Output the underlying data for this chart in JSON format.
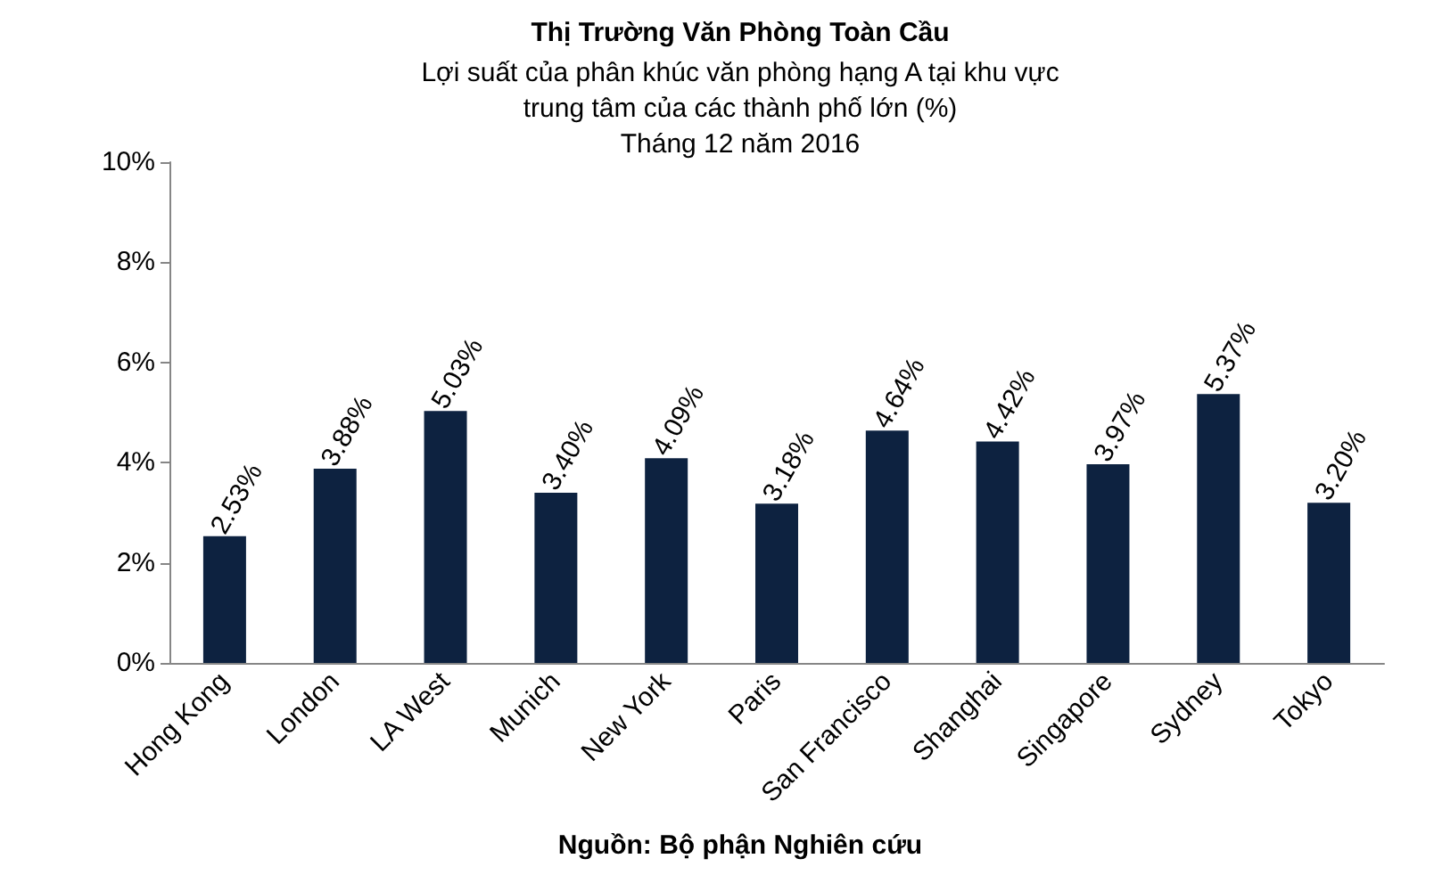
{
  "chart_data": {
    "type": "bar",
    "title": "Thị Trường Văn Phòng Toàn Cầu",
    "subtitle": "Lợi suất của phân khúc văn phòng hạng A tại khu vực\ntrung tâm của các thành phố lớn (%)\nTháng 12 năm 2016",
    "categories": [
      "Hong Kong",
      "London",
      "LA West",
      "Munich",
      "New York",
      "Paris",
      "San Francisco",
      "Shanghai",
      "Singapore",
      "Sydney",
      "Tokyo"
    ],
    "values": [
      2.53,
      3.88,
      5.03,
      3.4,
      4.09,
      3.18,
      4.64,
      4.42,
      3.97,
      5.37,
      3.2
    ],
    "value_labels": [
      "2.53%",
      "3.88%",
      "5.03%",
      "3.40%",
      "4.09%",
      "3.18%",
      "4.64%",
      "4.42%",
      "3.97%",
      "5.37%",
      "3.20%"
    ],
    "color": "#0d2240",
    "ylim": [
      0,
      10
    ],
    "yticks": [
      {
        "value": 0,
        "label": "0%"
      },
      {
        "value": 2,
        "label": "2%"
      },
      {
        "value": 4,
        "label": "4%"
      },
      {
        "value": 6,
        "label": "6%"
      },
      {
        "value": 8,
        "label": "8%"
      },
      {
        "value": 10,
        "label": "10%"
      }
    ],
    "grid": false,
    "annotations": [
      "Nguồn: Bộ phận Nghiên cứu"
    ]
  }
}
